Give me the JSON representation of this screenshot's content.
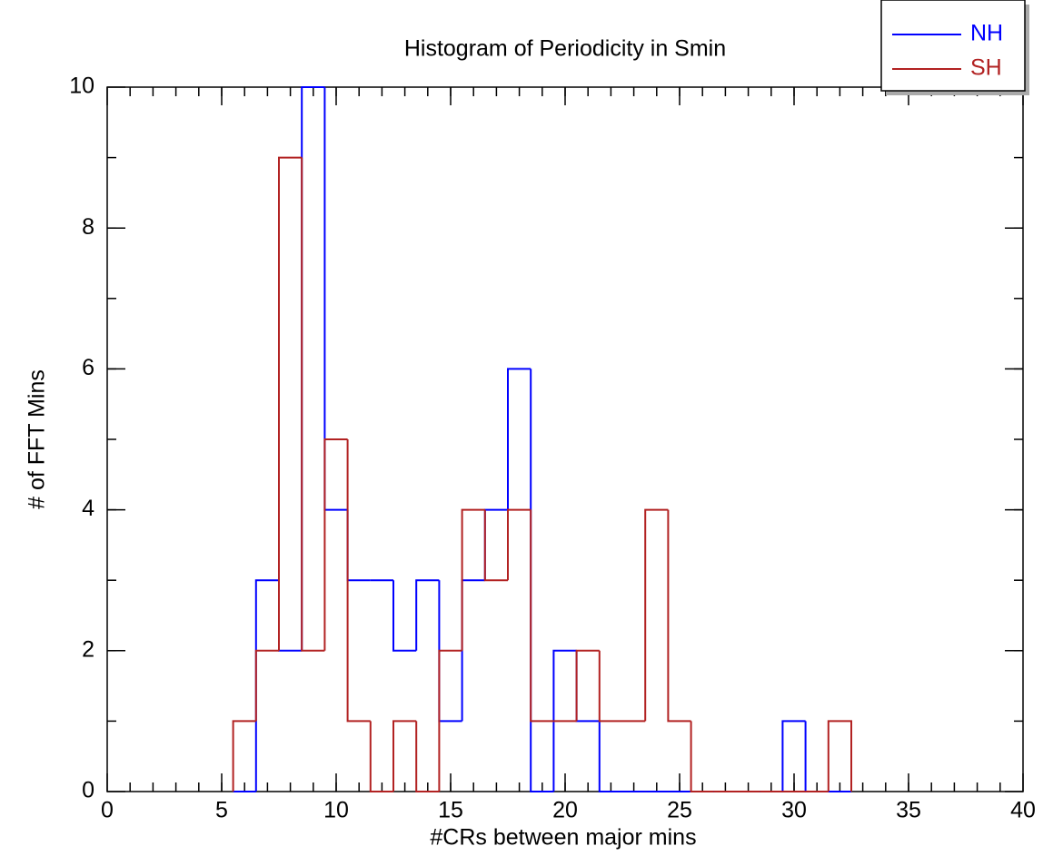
{
  "chart_data": {
    "type": "histogram",
    "title": "Histogram of Periodicity in Smin",
    "x_label": "#CRs between major mins",
    "y_label": "# of FFT Mins",
    "bins": [
      5.5,
      6.5,
      7.5,
      8.5,
      9.5,
      10.5,
      11.5,
      12.5,
      13.5,
      14.5,
      15.5,
      16.5,
      17.5,
      18.5,
      19.5,
      20.5,
      21.5,
      22.5,
      23.5,
      24.5,
      25.5,
      26.5,
      27.5,
      28.5,
      29.5,
      30.5,
      31.5,
      32.5
    ],
    "series": [
      {
        "name": "NH",
        "color": "#0000ff",
        "values": [
          0,
          3,
          2,
          10,
          4,
          3,
          3,
          2,
          3,
          1,
          3,
          4,
          6,
          0,
          2,
          1,
          0,
          0,
          0,
          0,
          0,
          0,
          0,
          0,
          1,
          0,
          0
        ]
      },
      {
        "name": "SH",
        "color": "#b22222",
        "values": [
          1,
          2,
          9,
          2,
          5,
          1,
          0,
          1,
          0,
          2,
          4,
          3,
          4,
          1,
          1,
          2,
          1,
          1,
          4,
          1,
          0,
          0,
          0,
          0,
          0,
          0,
          1
        ]
      }
    ],
    "xlim": [
      0,
      40
    ],
    "xticks": [
      0,
      5,
      10,
      15,
      20,
      25,
      30,
      35,
      40
    ],
    "ylim": [
      0,
      10
    ],
    "yticks": [
      0,
      2,
      4,
      6,
      8,
      10
    ],
    "legend": "top-right"
  }
}
